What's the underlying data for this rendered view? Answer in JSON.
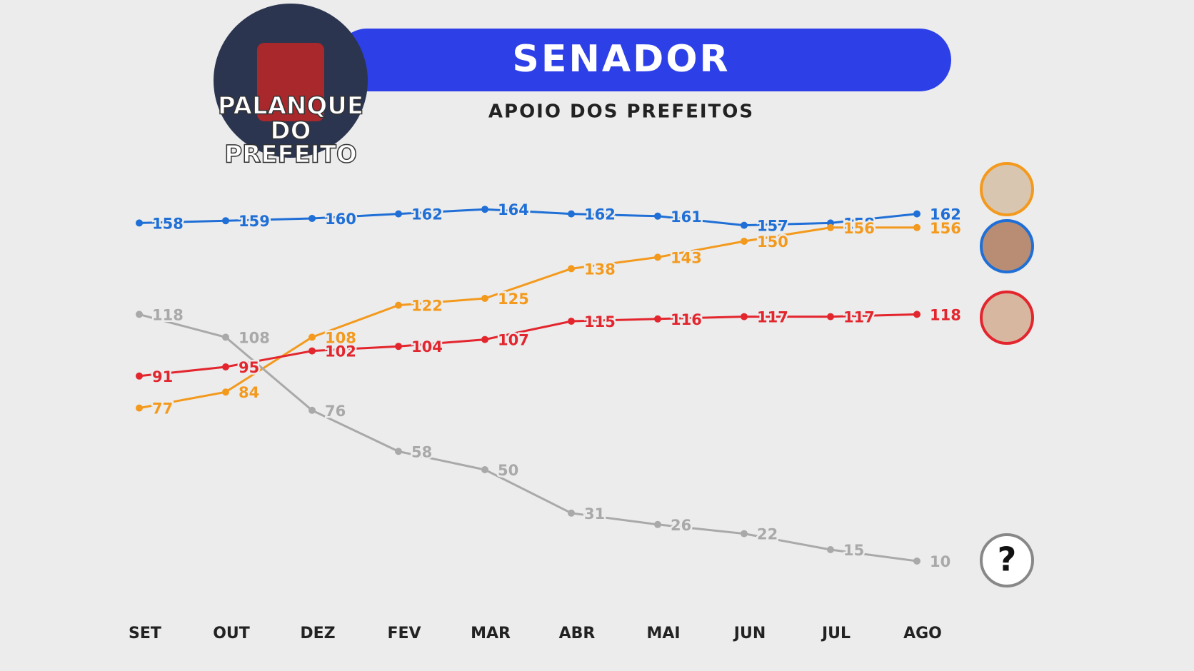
{
  "chart_data": {
    "type": "line",
    "title": "SENADOR",
    "subtitle": "APOIO DOS PREFEITOS",
    "logo": [
      "PALANQUE",
      "DO",
      "PREFEITO"
    ],
    "annotation": "?",
    "categories": [
      "SET",
      "OUT",
      "DEZ",
      "FEV",
      "MAR",
      "ABR",
      "MAI",
      "JUN",
      "JUL",
      "AGO"
    ],
    "ylim": [
      0,
      170
    ],
    "series": [
      {
        "color": "#1f6fd6",
        "values": [
          158,
          159,
          160,
          162,
          164,
          162,
          161,
          157,
          158,
          162
        ]
      },
      {
        "color": "#f39a1e",
        "values": [
          77,
          84,
          108,
          122,
          125,
          138,
          143,
          150,
          156,
          156
        ]
      },
      {
        "color": "#e3262e",
        "values": [
          91,
          95,
          102,
          104,
          107,
          115,
          116,
          117,
          117,
          118
        ]
      },
      {
        "color": "#a9a9a9",
        "values": [
          118,
          108,
          76,
          58,
          50,
          31,
          26,
          22,
          15,
          10
        ]
      }
    ]
  }
}
